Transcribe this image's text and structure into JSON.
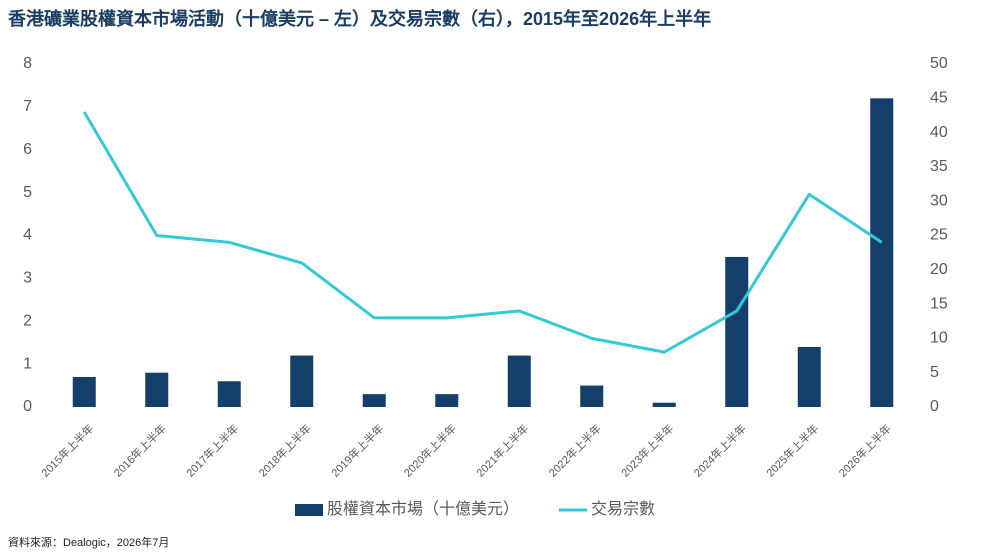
{
  "chart_data": {
    "type": "bar-line",
    "title": "香港礦業股權資本市場活動（十億美元 – 左）及交易宗數（右），2015年至2026年上半年",
    "categories": [
      "2015年上半年",
      "2016年上半年",
      "2017年上半年",
      "2018年上半年",
      "2019年上半年",
      "2020年上半年",
      "2021年上半年",
      "2022年上半年",
      "2023年上半年",
      "2024年上半年",
      "2025年上半年",
      "2026年上半年"
    ],
    "series": [
      {
        "name": "股權資本市場（十億美元）",
        "type": "bar",
        "color": "#143f6b",
        "values": [
          0.7,
          0.8,
          0.6,
          1.2,
          0.3,
          0.3,
          1.2,
          0.5,
          0.1,
          3.5,
          1.4,
          7.2
        ]
      },
      {
        "name": "交易宗數",
        "type": "line",
        "axis": "y2",
        "color": "#33c9d6",
        "values": [
          43,
          25,
          24,
          21,
          13,
          13,
          14,
          10,
          8,
          14,
          31,
          24
        ]
      }
    ],
    "ylim": [
      0,
      8
    ],
    "yticks": [
      0,
      1,
      2,
      3,
      4,
      5,
      6,
      7,
      8
    ],
    "y2lim": [
      0,
      50
    ],
    "y2ticks": [
      0,
      5,
      10,
      15,
      20,
      25,
      30,
      35,
      40,
      45,
      50
    ],
    "legend": "bottom",
    "source": "資料來源：Dealogic，2026年7月"
  }
}
